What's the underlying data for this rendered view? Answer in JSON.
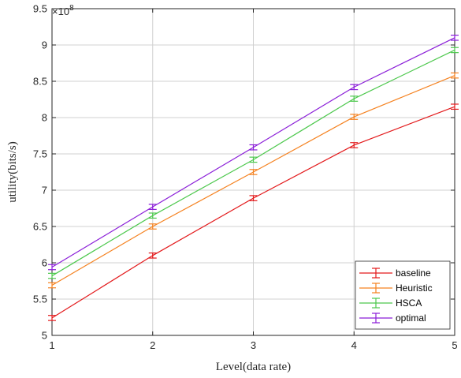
{
  "chart_data": {
    "type": "line",
    "title": "",
    "xlabel": "Level(data rate)",
    "ylabel": "utility(bits/s)",
    "y_multiplier": {
      "base": "×10",
      "exponent": "8"
    },
    "xlim": [
      1,
      5
    ],
    "ylim": [
      5,
      9.5
    ],
    "x": [
      1,
      2,
      3,
      4,
      5
    ],
    "x_ticks": [
      "1",
      "2",
      "3",
      "4",
      "5"
    ],
    "y_ticks": [
      "5",
      "5.5",
      "6",
      "6.5",
      "7",
      "7.5",
      "8",
      "8.5",
      "9",
      "9.5"
    ],
    "grid": true,
    "legend_position": "bottom-right",
    "error_bars": true,
    "series": [
      {
        "name": "baseline",
        "color": "#e31a1c",
        "values": [
          5.24,
          6.1,
          6.89,
          7.62,
          8.15
        ],
        "error": [
          0.035,
          0.035,
          0.035,
          0.035,
          0.035
        ]
      },
      {
        "name": "Heuristic",
        "color": "#f58220",
        "values": [
          5.69,
          6.5,
          7.25,
          8.01,
          8.58
        ],
        "error": [
          0.035,
          0.035,
          0.035,
          0.035,
          0.035
        ]
      },
      {
        "name": "HSCA",
        "color": "#4dc84d",
        "values": [
          5.82,
          6.65,
          7.42,
          8.26,
          8.93
        ],
        "error": [
          0.035,
          0.035,
          0.035,
          0.035,
          0.035
        ]
      },
      {
        "name": "optimal",
        "color": "#8b1fd8",
        "values": [
          5.94,
          6.77,
          7.59,
          8.42,
          9.1
        ],
        "error": [
          0.035,
          0.035,
          0.035,
          0.035,
          0.035
        ]
      }
    ]
  }
}
